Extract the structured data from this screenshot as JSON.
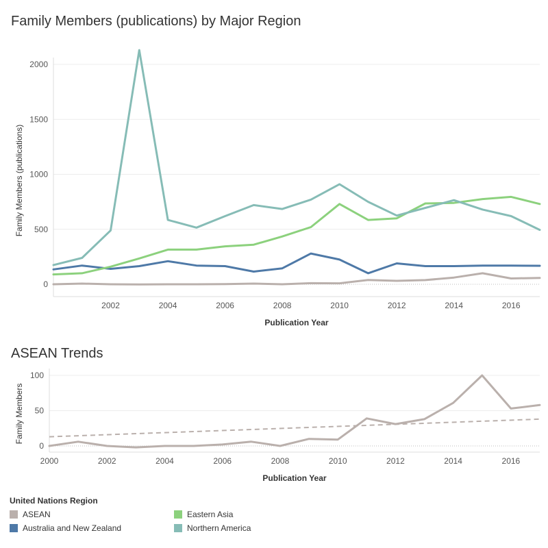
{
  "titles": {
    "main": "Family Members (publications) by Major Region",
    "asean": "ASEAN Trends"
  },
  "legend": {
    "title": "United Nations Region"
  },
  "chart_data": [
    {
      "type": "line",
      "title": "Family Members (publications) by Major Region",
      "xlabel": "Publication Year",
      "ylabel": "Family Members (publications)",
      "xlim": [
        2000,
        2017
      ],
      "ylim": [
        0,
        2150
      ],
      "xticks": [
        2002,
        2004,
        2006,
        2008,
        2010,
        2012,
        2014,
        2016
      ],
      "yticks": [
        0,
        500,
        1000,
        1500,
        2000
      ],
      "grid": true,
      "x": [
        2000,
        2001,
        2002,
        2003,
        2004,
        2005,
        2006,
        2007,
        2008,
        2009,
        2010,
        2011,
        2012,
        2013,
        2014,
        2015,
        2016,
        2017
      ],
      "series": [
        {
          "name": "ASEAN",
          "color": "#bab0ac",
          "values": [
            0,
            6,
            0,
            -2,
            0,
            0,
            2,
            6,
            0,
            10,
            9,
            39,
            31,
            38,
            61,
            100,
            53,
            58
          ]
        },
        {
          "name": "Australia and New Zealand",
          "color": "#4e79a7",
          "values": [
            135,
            170,
            140,
            165,
            210,
            170,
            165,
            115,
            145,
            280,
            225,
            100,
            190,
            165,
            165,
            170,
            170,
            168
          ]
        },
        {
          "name": "Eastern Asia",
          "color": "#8cd17d",
          "values": [
            90,
            100,
            160,
            235,
            315,
            315,
            345,
            360,
            435,
            520,
            730,
            585,
            600,
            735,
            740,
            775,
            795,
            730
          ]
        },
        {
          "name": "Northern America",
          "color": "#86bcb6",
          "values": [
            175,
            240,
            490,
            2130,
            585,
            515,
            620,
            720,
            685,
            770,
            910,
            750,
            625,
            695,
            765,
            680,
            620,
            495
          ]
        }
      ]
    },
    {
      "type": "line",
      "title": "ASEAN Trends",
      "xlabel": "Publication Year",
      "ylabel": "Family Members",
      "xlim": [
        2000,
        2017
      ],
      "ylim": [
        0,
        105
      ],
      "xticks": [
        2000,
        2002,
        2004,
        2006,
        2008,
        2010,
        2012,
        2014,
        2016
      ],
      "yticks": [
        0,
        50,
        100
      ],
      "grid": true,
      "x": [
        2000,
        2001,
        2002,
        2003,
        2004,
        2005,
        2006,
        2007,
        2008,
        2009,
        2010,
        2011,
        2012,
        2013,
        2014,
        2015,
        2016,
        2017
      ],
      "series": [
        {
          "name": "ASEAN",
          "color": "#bab0ac",
          "values": [
            0,
            6,
            0,
            -2,
            0,
            0,
            2,
            6,
            0,
            10,
            9,
            39,
            31,
            38,
            61,
            100,
            53,
            58
          ]
        }
      ],
      "trend_line": {
        "style": "dashed",
        "color": "#bab0ac",
        "values": [
          13,
          38
        ]
      }
    }
  ]
}
